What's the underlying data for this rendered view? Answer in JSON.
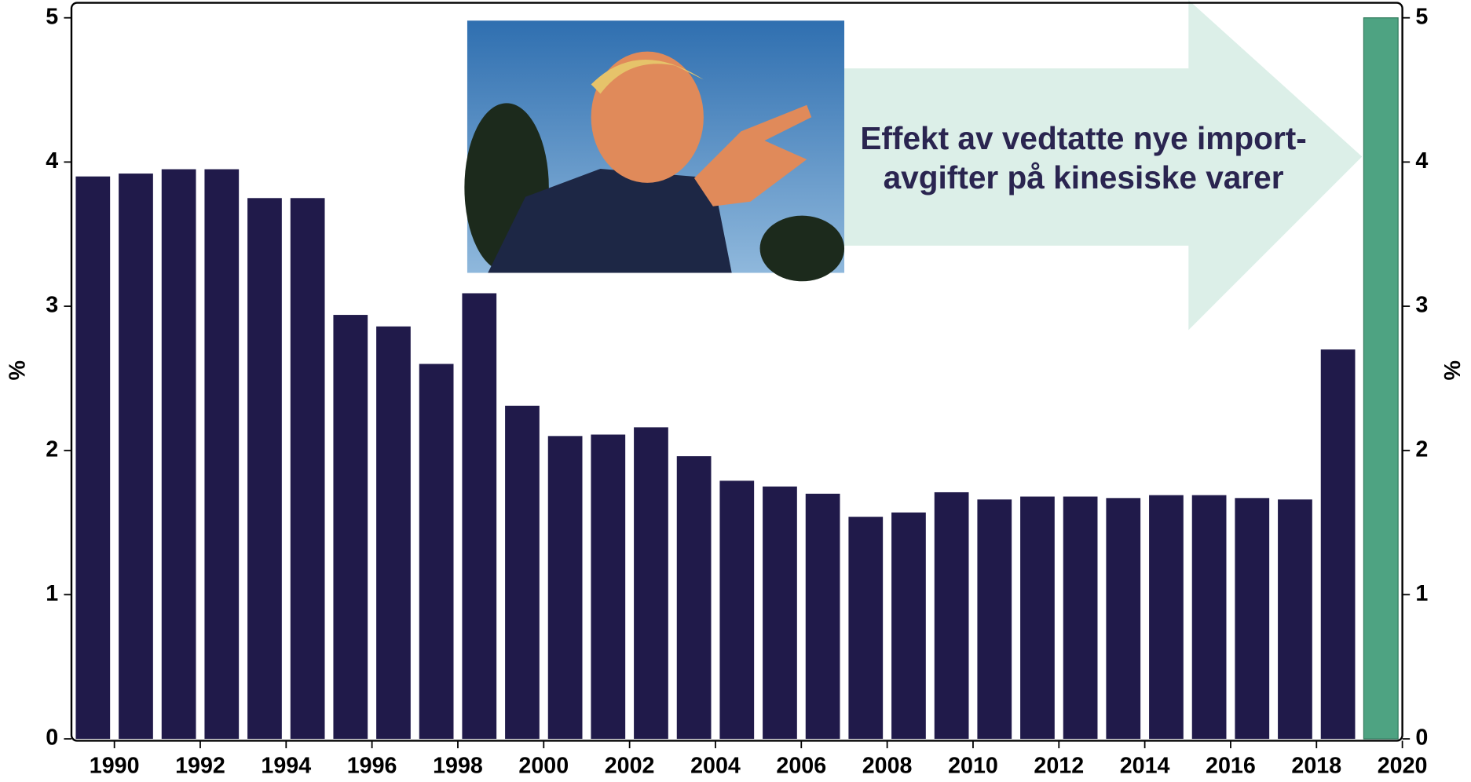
{
  "chart_data": {
    "type": "bar",
    "x": [
      1989,
      1990,
      1991,
      1992,
      1993,
      1994,
      1995,
      1996,
      1997,
      1998,
      1999,
      2000,
      2001,
      2002,
      2003,
      2004,
      2005,
      2006,
      2007,
      2008,
      2009,
      2010,
      2011,
      2012,
      2013,
      2014,
      2015,
      2016,
      2017,
      2018,
      2019
    ],
    "values": [
      3.9,
      3.92,
      3.95,
      3.95,
      3.75,
      3.75,
      2.94,
      2.86,
      2.6,
      3.09,
      2.31,
      2.1,
      2.11,
      2.16,
      1.96,
      1.79,
      1.75,
      1.7,
      1.54,
      1.57,
      1.71,
      1.66,
      1.68,
      1.68,
      1.67,
      1.69,
      1.69,
      1.67,
      1.66,
      2.7,
      5.0
    ],
    "colors": [
      "#201a4a",
      "#201a4a",
      "#201a4a",
      "#201a4a",
      "#201a4a",
      "#201a4a",
      "#201a4a",
      "#201a4a",
      "#201a4a",
      "#201a4a",
      "#201a4a",
      "#201a4a",
      "#201a4a",
      "#201a4a",
      "#201a4a",
      "#201a4a",
      "#201a4a",
      "#201a4a",
      "#201a4a",
      "#201a4a",
      "#201a4a",
      "#201a4a",
      "#201a4a",
      "#201a4a",
      "#201a4a",
      "#201a4a",
      "#201a4a",
      "#201a4a",
      "#201a4a",
      "#201a4a",
      "#4ea382"
    ],
    "xlim": [
      1989,
      2020
    ],
    "xticks": [
      1990,
      1992,
      1994,
      1996,
      1998,
      2000,
      2002,
      2004,
      2006,
      2008,
      2010,
      2012,
      2014,
      2016,
      2018,
      2020
    ],
    "ylim": [
      0,
      5
    ],
    "yticks": [
      0,
      1,
      2,
      3,
      4,
      5
    ],
    "y2lim": [
      0,
      5
    ],
    "y2ticks": [
      0,
      1,
      2,
      3,
      4,
      5
    ],
    "ylabel": "%",
    "y2label": "%",
    "annotation": [
      "Effekt av vedtatte nye import-",
      "avgifter på kinesiske varer"
    ]
  }
}
